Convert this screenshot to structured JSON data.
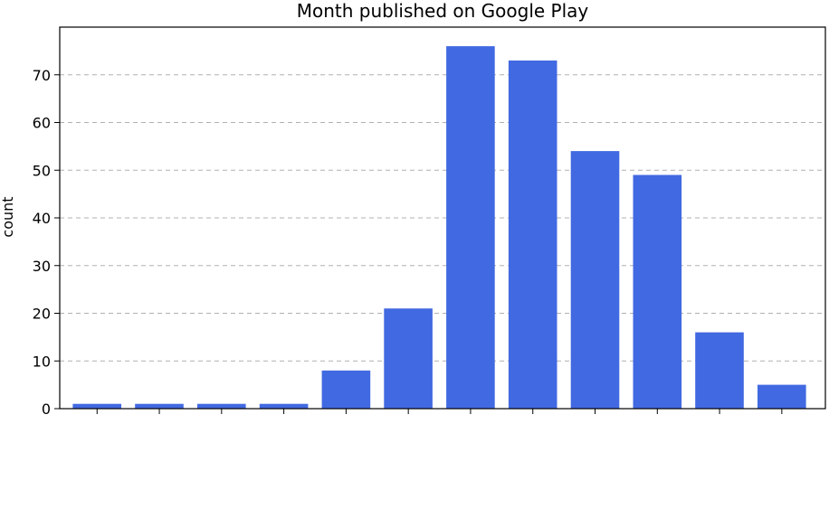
{
  "chart_data": {
    "type": "bar",
    "title": "Month published on Google Play",
    "ylabel": "count",
    "xlabel": "",
    "categories": [
      "",
      "",
      "",
      "",
      "",
      "",
      "",
      "",
      "",
      "",
      "",
      ""
    ],
    "values": [
      1,
      1,
      1,
      1,
      8,
      21,
      76,
      73,
      54,
      49,
      16,
      5
    ],
    "ylim": [
      0,
      80
    ],
    "yticks": [
      0,
      10,
      20,
      30,
      40,
      50,
      60,
      70
    ],
    "grid": "y-dashed",
    "bar_color": "#4169e1",
    "grid_color": "#b0b0b0"
  }
}
